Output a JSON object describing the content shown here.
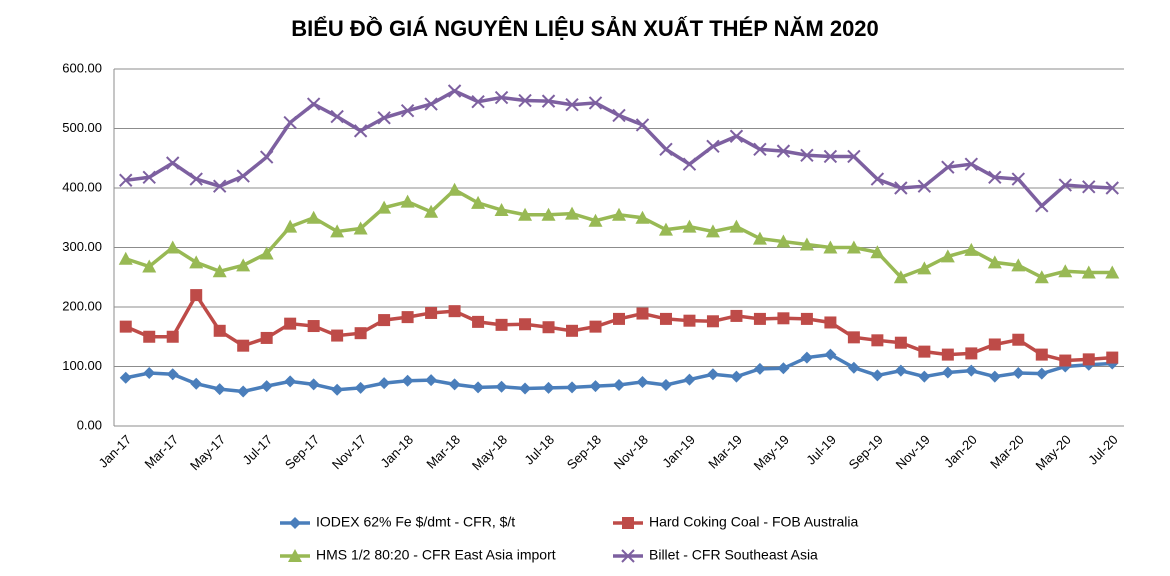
{
  "chart_data": {
    "type": "line",
    "title": "BIỂU ĐỒ GIÁ NGUYÊN LIỆU SẢN XUẤT THÉP NĂM 2020",
    "categories": [
      "Jan-17",
      null,
      "Mar-17",
      null,
      "May-17",
      null,
      "Jul-17",
      null,
      "Sep-17",
      null,
      "Nov-17",
      null,
      "Jan-18",
      null,
      "Mar-18",
      null,
      "May-18",
      null,
      "Jul-18",
      null,
      "Sep-18",
      null,
      "Nov-18",
      null,
      "Jan-19",
      null,
      "Mar-19",
      null,
      "May-19",
      null,
      "Jul-19",
      null,
      "Sep-19",
      null,
      "Nov-19",
      null,
      "Jan-20",
      null,
      "Mar-20",
      null,
      "May-20",
      null,
      "Jul-20"
    ],
    "series": [
      {
        "name": "IODEX 62% Fe $/dmt - CFR, $/t",
        "color": "#4a7ebb",
        "marker": "diamond",
        "values": [
          81,
          89,
          87,
          71,
          62,
          58,
          67,
          75,
          70,
          61,
          64,
          72,
          76,
          77,
          70,
          65,
          66,
          63,
          64,
          65,
          67,
          69,
          74,
          69,
          78,
          87,
          83,
          96,
          97,
          115,
          120,
          98,
          85,
          93,
          83,
          90,
          93,
          83,
          89,
          88,
          100,
          103,
          105
        ]
      },
      {
        "name": "Hard Coking Coal - FOB Australia",
        "color": "#be4b48",
        "marker": "square",
        "values": [
          167,
          150,
          150,
          220,
          160,
          135,
          148,
          172,
          168,
          152,
          156,
          178,
          183,
          190,
          193,
          175,
          170,
          171,
          166,
          160,
          167,
          180,
          189,
          180,
          177,
          176,
          185,
          180,
          181,
          180,
          174,
          149,
          144,
          140,
          125,
          120,
          122,
          137,
          145,
          120,
          110,
          112,
          115
        ]
      },
      {
        "name": "HMS 1/2 80:20 - CFR East Asia import",
        "color": "#98b954",
        "marker": "triangle",
        "values": [
          281,
          268,
          300,
          275,
          260,
          270,
          290,
          335,
          350,
          327,
          332,
          367,
          377,
          360,
          397,
          375,
          363,
          355,
          355,
          357,
          345,
          355,
          350,
          330,
          335,
          327,
          335,
          315,
          310,
          305,
          300,
          300,
          292,
          250,
          265,
          285,
          296,
          275,
          270,
          250,
          260,
          258,
          258
        ]
      },
      {
        "name": "Billet - CFR Southeast Asia",
        "color": "#7d60a0",
        "marker": "x",
        "values": [
          413,
          418,
          442,
          415,
          403,
          420,
          452,
          510,
          541,
          520,
          496,
          518,
          530,
          541,
          563,
          545,
          552,
          547,
          546,
          540,
          543,
          522,
          506,
          465,
          440,
          470,
          487,
          465,
          462,
          455,
          453,
          453,
          415,
          400,
          403,
          435,
          440,
          418,
          415,
          370,
          405,
          402,
          400
        ]
      }
    ],
    "ylim": [
      0,
      600
    ],
    "yticks": [
      {
        "value": 0,
        "label": "0.00"
      },
      {
        "value": 100,
        "label": "100.00"
      },
      {
        "value": 200,
        "label": "200.00"
      },
      {
        "value": 300,
        "label": "300.00"
      },
      {
        "value": 400,
        "label": "400.00"
      },
      {
        "value": 500,
        "label": "500.00"
      },
      {
        "value": 600,
        "label": "600.00"
      }
    ],
    "grid": true
  }
}
